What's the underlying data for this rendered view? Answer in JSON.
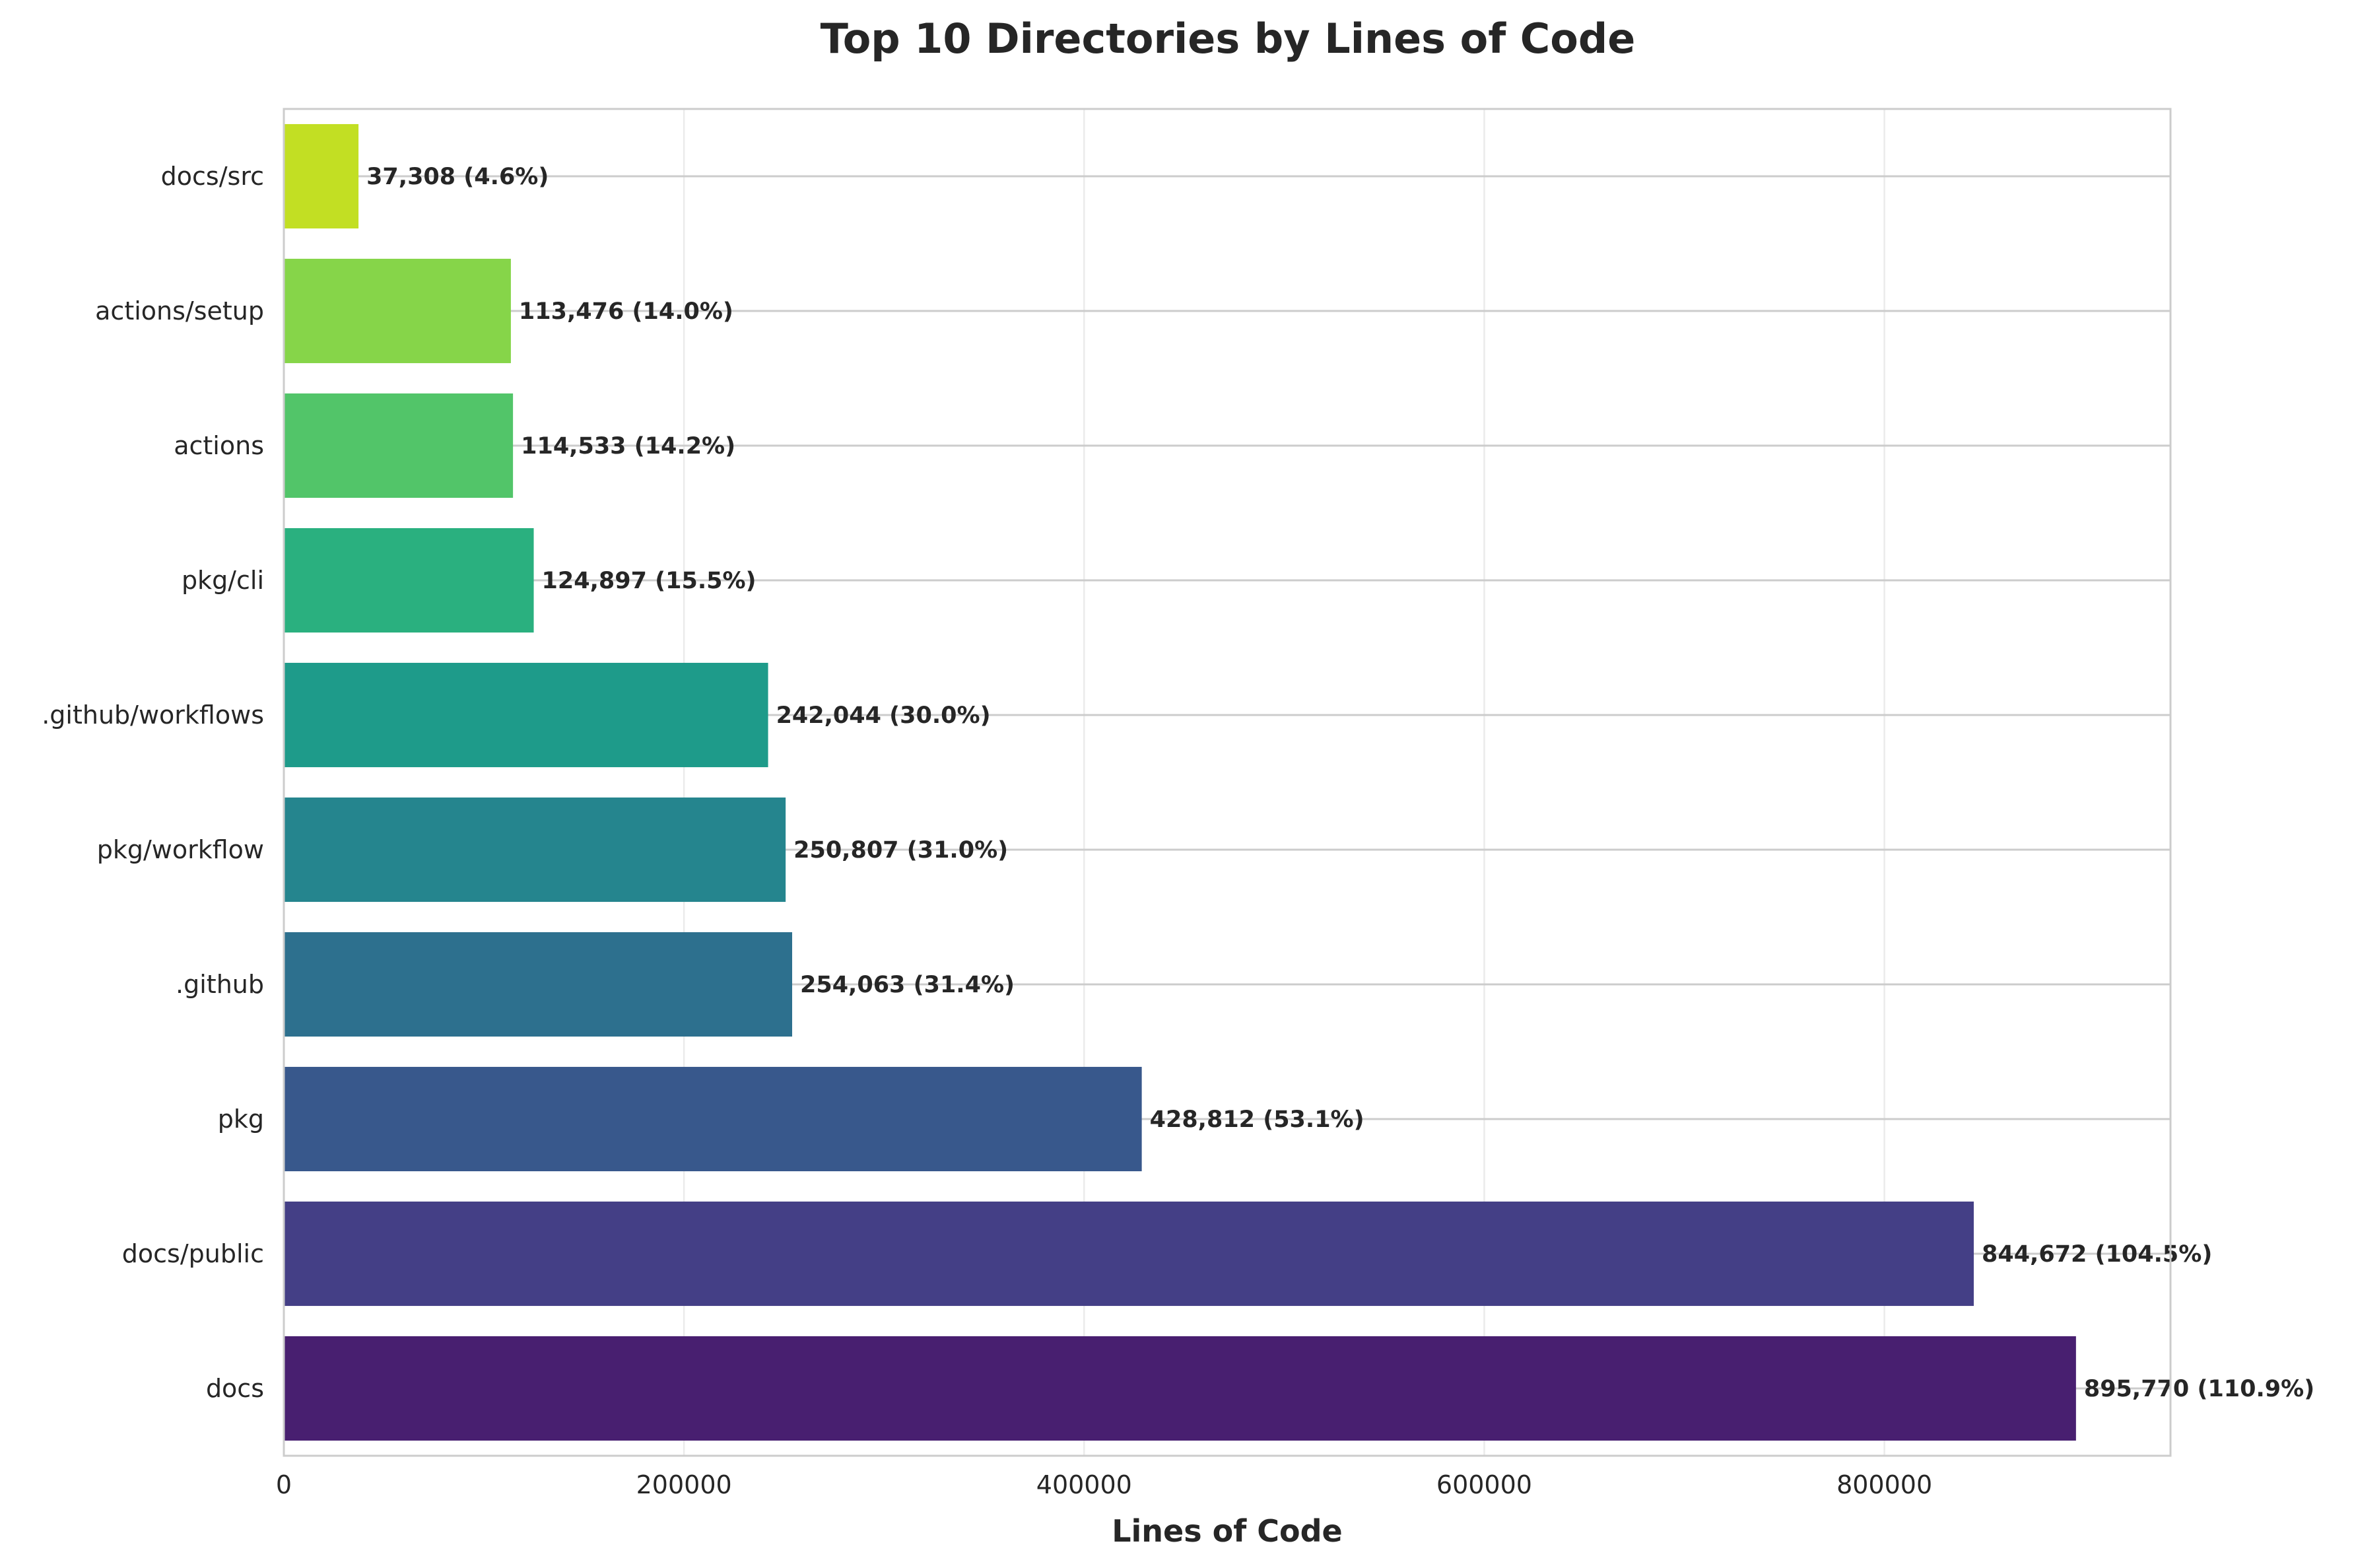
{
  "chart_data": {
    "type": "bar",
    "orientation": "horizontal",
    "title": "Top 10 Directories by Lines of Code",
    "xlabel": "Lines of Code",
    "ylabel": "",
    "xlim": [
      0,
      943000
    ],
    "xticks": [
      0,
      200000,
      400000,
      600000,
      800000
    ],
    "xtick_labels": [
      "0",
      "200000",
      "400000",
      "600000",
      "800000"
    ],
    "grid": true,
    "categories": [
      "docs/src",
      "actions/setup",
      "actions",
      "pkg/cli",
      ".github/workflows",
      "pkg/workflow",
      ".github",
      "pkg",
      "docs/public",
      "docs"
    ],
    "values": [
      37308,
      113476,
      114533,
      124897,
      242044,
      250807,
      254063,
      428812,
      844672,
      895770
    ],
    "labels": [
      "37,308 (4.6%)",
      "113,476 (14.0%)",
      "114,533 (14.2%)",
      "124,897 (15.5%)",
      "242,044 (30.0%)",
      "250,807 (31.0%)",
      "254,063 (31.4%)",
      "428,812 (53.1%)",
      "844,672 (104.5%)",
      "895,770 (110.9%)"
    ],
    "colors": [
      "#c2df23",
      "#86d549",
      "#52c569",
      "#2ab07f",
      "#1e9b8a",
      "#25858e",
      "#2d708e",
      "#38588c",
      "#443f86",
      "#481f70"
    ]
  }
}
